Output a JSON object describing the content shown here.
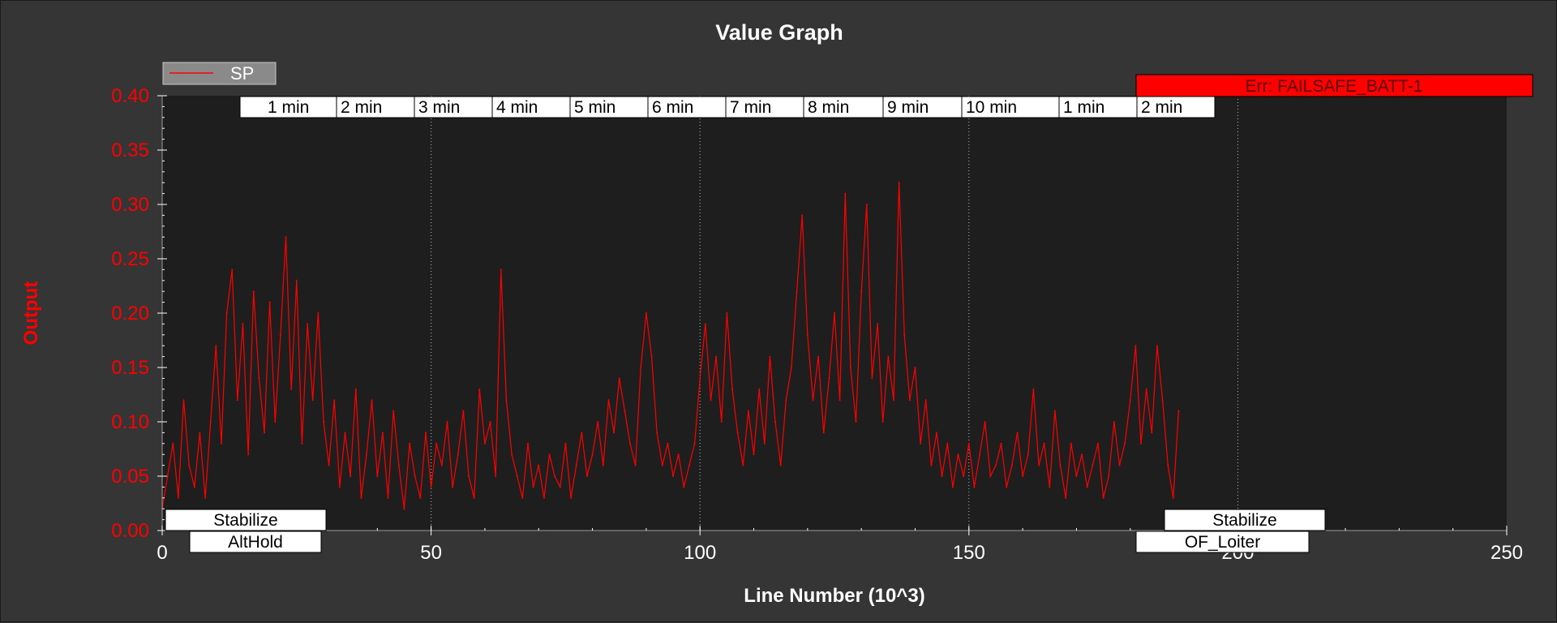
{
  "chart_data": {
    "type": "line",
    "title": "Value Graph",
    "xlabel": "Line Number (10^3)",
    "ylabel": "Output",
    "xlim": [
      0,
      250
    ],
    "ylim": [
      0,
      0.4
    ],
    "x_ticks": [
      0,
      50,
      100,
      150,
      200,
      250
    ],
    "x_tick_labels": [
      "0",
      "50",
      "100",
      "150",
      "200",
      "250"
    ],
    "y_ticks": [
      0,
      0.05,
      0.1,
      0.15,
      0.2,
      0.25,
      0.3,
      0.35,
      0.4
    ],
    "y_tick_labels": [
      "0.00",
      "0.05",
      "0.10",
      "0.15",
      "0.20",
      "0.25",
      "0.30",
      "0.35",
      "0.40"
    ],
    "grid_x": [
      50,
      100,
      150,
      200
    ],
    "legend_position": "top-left",
    "series": [
      {
        "name": "SP",
        "color": "#ff0000",
        "points": [
          [
            0,
            0.02
          ],
          [
            1,
            0.05
          ],
          [
            2,
            0.08
          ],
          [
            3,
            0.03
          ],
          [
            4,
            0.12
          ],
          [
            5,
            0.06
          ],
          [
            6,
            0.04
          ],
          [
            7,
            0.09
          ],
          [
            8,
            0.03
          ],
          [
            9,
            0.1
          ],
          [
            10,
            0.17
          ],
          [
            11,
            0.08
          ],
          [
            12,
            0.2
          ],
          [
            13,
            0.24
          ],
          [
            14,
            0.12
          ],
          [
            15,
            0.19
          ],
          [
            16,
            0.07
          ],
          [
            17,
            0.22
          ],
          [
            18,
            0.14
          ],
          [
            19,
            0.09
          ],
          [
            20,
            0.21
          ],
          [
            21,
            0.1
          ],
          [
            22,
            0.18
          ],
          [
            23,
            0.27
          ],
          [
            24,
            0.13
          ],
          [
            25,
            0.23
          ],
          [
            26,
            0.08
          ],
          [
            27,
            0.19
          ],
          [
            28,
            0.12
          ],
          [
            29,
            0.2
          ],
          [
            30,
            0.1
          ],
          [
            31,
            0.06
          ],
          [
            32,
            0.12
          ],
          [
            33,
            0.04
          ],
          [
            34,
            0.09
          ],
          [
            35,
            0.05
          ],
          [
            36,
            0.13
          ],
          [
            37,
            0.03
          ],
          [
            38,
            0.07
          ],
          [
            39,
            0.12
          ],
          [
            40,
            0.05
          ],
          [
            41,
            0.09
          ],
          [
            42,
            0.03
          ],
          [
            43,
            0.11
          ],
          [
            44,
            0.06
          ],
          [
            45,
            0.02
          ],
          [
            46,
            0.08
          ],
          [
            47,
            0.05
          ],
          [
            48,
            0.03
          ],
          [
            49,
            0.09
          ],
          [
            50,
            0.04
          ],
          [
            51,
            0.08
          ],
          [
            52,
            0.06
          ],
          [
            53,
            0.1
          ],
          [
            54,
            0.04
          ],
          [
            55,
            0.07
          ],
          [
            56,
            0.11
          ],
          [
            57,
            0.05
          ],
          [
            58,
            0.03
          ],
          [
            59,
            0.13
          ],
          [
            60,
            0.08
          ],
          [
            61,
            0.1
          ],
          [
            62,
            0.05
          ],
          [
            63,
            0.24
          ],
          [
            64,
            0.12
          ],
          [
            65,
            0.07
          ],
          [
            66,
            0.05
          ],
          [
            67,
            0.03
          ],
          [
            68,
            0.08
          ],
          [
            69,
            0.04
          ],
          [
            70,
            0.06
          ],
          [
            71,
            0.03
          ],
          [
            72,
            0.07
          ],
          [
            73,
            0.05
          ],
          [
            74,
            0.04
          ],
          [
            75,
            0.08
          ],
          [
            76,
            0.03
          ],
          [
            77,
            0.06
          ],
          [
            78,
            0.09
          ],
          [
            79,
            0.05
          ],
          [
            80,
            0.07
          ],
          [
            81,
            0.1
          ],
          [
            82,
            0.06
          ],
          [
            83,
            0.12
          ],
          [
            84,
            0.09
          ],
          [
            85,
            0.14
          ],
          [
            86,
            0.11
          ],
          [
            87,
            0.08
          ],
          [
            88,
            0.06
          ],
          [
            89,
            0.15
          ],
          [
            90,
            0.2
          ],
          [
            91,
            0.16
          ],
          [
            92,
            0.09
          ],
          [
            93,
            0.06
          ],
          [
            94,
            0.08
          ],
          [
            95,
            0.05
          ],
          [
            96,
            0.07
          ],
          [
            97,
            0.04
          ],
          [
            98,
            0.06
          ],
          [
            99,
            0.08
          ],
          [
            100,
            0.14
          ],
          [
            101,
            0.19
          ],
          [
            102,
            0.12
          ],
          [
            103,
            0.16
          ],
          [
            104,
            0.1
          ],
          [
            105,
            0.2
          ],
          [
            106,
            0.13
          ],
          [
            107,
            0.09
          ],
          [
            108,
            0.06
          ],
          [
            109,
            0.11
          ],
          [
            110,
            0.07
          ],
          [
            111,
            0.13
          ],
          [
            112,
            0.08
          ],
          [
            113,
            0.16
          ],
          [
            114,
            0.1
          ],
          [
            115,
            0.06
          ],
          [
            116,
            0.12
          ],
          [
            117,
            0.15
          ],
          [
            118,
            0.22
          ],
          [
            119,
            0.29
          ],
          [
            120,
            0.18
          ],
          [
            121,
            0.12
          ],
          [
            122,
            0.16
          ],
          [
            123,
            0.09
          ],
          [
            124,
            0.14
          ],
          [
            125,
            0.2
          ],
          [
            126,
            0.12
          ],
          [
            127,
            0.31
          ],
          [
            128,
            0.15
          ],
          [
            129,
            0.1
          ],
          [
            130,
            0.22
          ],
          [
            131,
            0.3
          ],
          [
            132,
            0.14
          ],
          [
            133,
            0.19
          ],
          [
            134,
            0.1
          ],
          [
            135,
            0.16
          ],
          [
            136,
            0.12
          ],
          [
            137,
            0.32
          ],
          [
            138,
            0.18
          ],
          [
            139,
            0.12
          ],
          [
            140,
            0.15
          ],
          [
            141,
            0.08
          ],
          [
            142,
            0.12
          ],
          [
            143,
            0.06
          ],
          [
            144,
            0.09
          ],
          [
            145,
            0.05
          ],
          [
            146,
            0.08
          ],
          [
            147,
            0.04
          ],
          [
            148,
            0.07
          ],
          [
            149,
            0.05
          ],
          [
            150,
            0.08
          ],
          [
            151,
            0.04
          ],
          [
            152,
            0.07
          ],
          [
            153,
            0.1
          ],
          [
            154,
            0.05
          ],
          [
            155,
            0.06
          ],
          [
            156,
            0.08
          ],
          [
            157,
            0.04
          ],
          [
            158,
            0.06
          ],
          [
            159,
            0.09
          ],
          [
            160,
            0.05
          ],
          [
            161,
            0.07
          ],
          [
            162,
            0.13
          ],
          [
            163,
            0.06
          ],
          [
            164,
            0.08
          ],
          [
            165,
            0.04
          ],
          [
            166,
            0.11
          ],
          [
            167,
            0.06
          ],
          [
            168,
            0.03
          ],
          [
            169,
            0.08
          ],
          [
            170,
            0.05
          ],
          [
            171,
            0.07
          ],
          [
            172,
            0.04
          ],
          [
            173,
            0.06
          ],
          [
            174,
            0.08
          ],
          [
            175,
            0.03
          ],
          [
            176,
            0.05
          ],
          [
            177,
            0.1
          ],
          [
            178,
            0.06
          ],
          [
            179,
            0.08
          ],
          [
            180,
            0.12
          ],
          [
            181,
            0.17
          ],
          [
            182,
            0.08
          ],
          [
            183,
            0.13
          ],
          [
            184,
            0.09
          ],
          [
            185,
            0.17
          ],
          [
            186,
            0.12
          ],
          [
            187,
            0.06
          ],
          [
            188,
            0.03
          ],
          [
            189,
            0.11
          ]
        ]
      }
    ]
  },
  "legend": {
    "label": "SP"
  },
  "time_markers": [
    "1 min",
    "2 min",
    "3 min",
    "4 min",
    "5 min",
    "6 min",
    "7 min",
    "8 min",
    "9 min",
    "10 min",
    "1 min",
    "2 min"
  ],
  "error_banner": {
    "text": "Err: FAILSAFE_BATT-1",
    "color": "#ff0000"
  },
  "mode_labels": [
    {
      "text": "Stabilize",
      "row": "upper"
    },
    {
      "text": "AltHold",
      "row": "lower"
    },
    {
      "text": "Stabilize",
      "row": "upper"
    },
    {
      "text": "OF_Loiter",
      "row": "lower"
    }
  ],
  "colors": {
    "background": "#353535",
    "plot_background": "#1e1e1e",
    "axis_text_y": "#ff0000",
    "axis_text_x": "#ffffff",
    "title": "#ffffff"
  }
}
